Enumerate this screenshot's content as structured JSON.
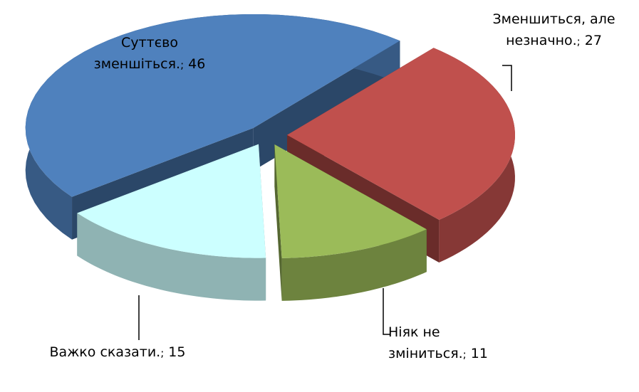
{
  "chart_data": {
    "type": "pie3d",
    "categories": [
      "Зменшиться, але незначно.",
      "Ніяк не зміниться.",
      "Важко сказати.",
      "Суттєво зменшіться."
    ],
    "values": [
      27,
      11,
      15,
      46
    ],
    "colors": [
      "#c0504d",
      "#9bbb59",
      "#ccffff",
      "#4f81bd"
    ],
    "label_separator": ";"
  }
}
